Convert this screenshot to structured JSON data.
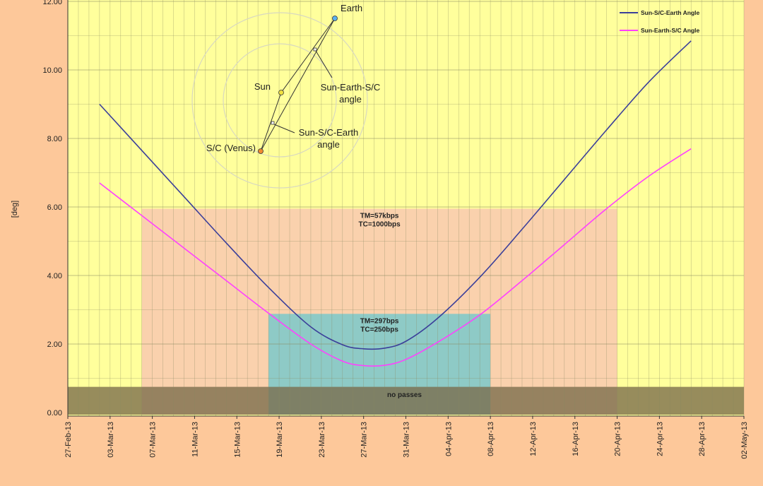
{
  "chart_data": {
    "type": "line",
    "ylabel": "[deg]",
    "ylim": [
      0,
      12
    ],
    "y_ticks": [
      "0.00",
      "2.00",
      "4.00",
      "6.00",
      "8.00",
      "10.00",
      "12.00"
    ],
    "x_range": [
      "2013-02-27",
      "2013-05-02"
    ],
    "x_ticks": [
      "27-Feb-13",
      "03-Mar-13",
      "07-Mar-13",
      "11-Mar-13",
      "15-Mar-13",
      "19-Mar-13",
      "23-Mar-13",
      "27-Mar-13",
      "31-Mar-13",
      "04-Apr-13",
      "08-Apr-13",
      "12-Apr-13",
      "16-Apr-13",
      "20-Apr-13",
      "24-Apr-13",
      "28-Apr-13",
      "02-May-13"
    ],
    "x_tick_dates": [
      "2013-02-27",
      "2013-03-03",
      "2013-03-07",
      "2013-03-11",
      "2013-03-15",
      "2013-03-19",
      "2013-03-23",
      "2013-03-27",
      "2013-03-31",
      "2013-04-04",
      "2013-04-08",
      "2013-04-12",
      "2013-04-16",
      "2013-04-20",
      "2013-04-24",
      "2013-04-28",
      "2013-05-02"
    ],
    "grid": true,
    "legend_position": "top-right",
    "series": [
      {
        "name": "Sun-S/C-Earth Angle",
        "color": "#3b3f9a",
        "x": [
          "2013-03-02",
          "2013-03-06",
          "2013-03-10",
          "2013-03-14",
          "2013-03-18",
          "2013-03-22",
          "2013-03-25",
          "2013-03-27",
          "2013-03-29",
          "2013-03-31",
          "2013-04-03",
          "2013-04-07",
          "2013-04-11",
          "2013-04-15",
          "2013-04-19",
          "2013-04-23",
          "2013-04-27"
        ],
        "y": [
          9.0,
          7.65,
          6.3,
          4.95,
          3.65,
          2.5,
          1.98,
          1.86,
          1.88,
          2.08,
          2.75,
          3.95,
          5.35,
          6.8,
          8.25,
          9.65,
          10.85
        ]
      },
      {
        "name": "Sun-Earth-S/C Angle",
        "color": "#ff40ff",
        "x": [
          "2013-03-02",
          "2013-03-06",
          "2013-03-10",
          "2013-03-14",
          "2013-03-18",
          "2013-03-22",
          "2013-03-25",
          "2013-03-27",
          "2013-03-29",
          "2013-03-31",
          "2013-04-03",
          "2013-04-07",
          "2013-04-11",
          "2013-04-15",
          "2013-04-19",
          "2013-04-23",
          "2013-04-27"
        ],
        "y": [
          6.7,
          5.75,
          4.8,
          3.85,
          2.9,
          2.0,
          1.5,
          1.37,
          1.38,
          1.55,
          2.05,
          2.85,
          3.85,
          4.9,
          5.95,
          6.9,
          7.7
        ]
      }
    ],
    "bands": [
      {
        "label_lines": [
          "TM=57kbps",
          "TC=1000bps"
        ],
        "x_start": "2013-03-06",
        "x_end": "2013-04-20",
        "y_max": 5.95,
        "color": "#f9c9b0"
      },
      {
        "label_lines": [
          "TM=297bps",
          "TC=250bps"
        ],
        "x_start": "2013-03-18",
        "x_end": "2013-04-08",
        "y_max": 2.88,
        "color": "#82c9c9"
      },
      {
        "label_lines": [
          "no passes"
        ],
        "x_start": "2013-02-27",
        "x_end": "2013-05-02",
        "y_max": 0.75,
        "color": "#7a6b4a"
      }
    ],
    "inset_diagram": {
      "labels": {
        "earth": "Earth",
        "sun": "Sun",
        "sc": "S/C (Venus)",
        "earth_angle": [
          "Sun-Earth-S/C",
          "angle"
        ],
        "sc_angle": [
          "Sun-S/C-Earth",
          "angle"
        ]
      }
    }
  }
}
